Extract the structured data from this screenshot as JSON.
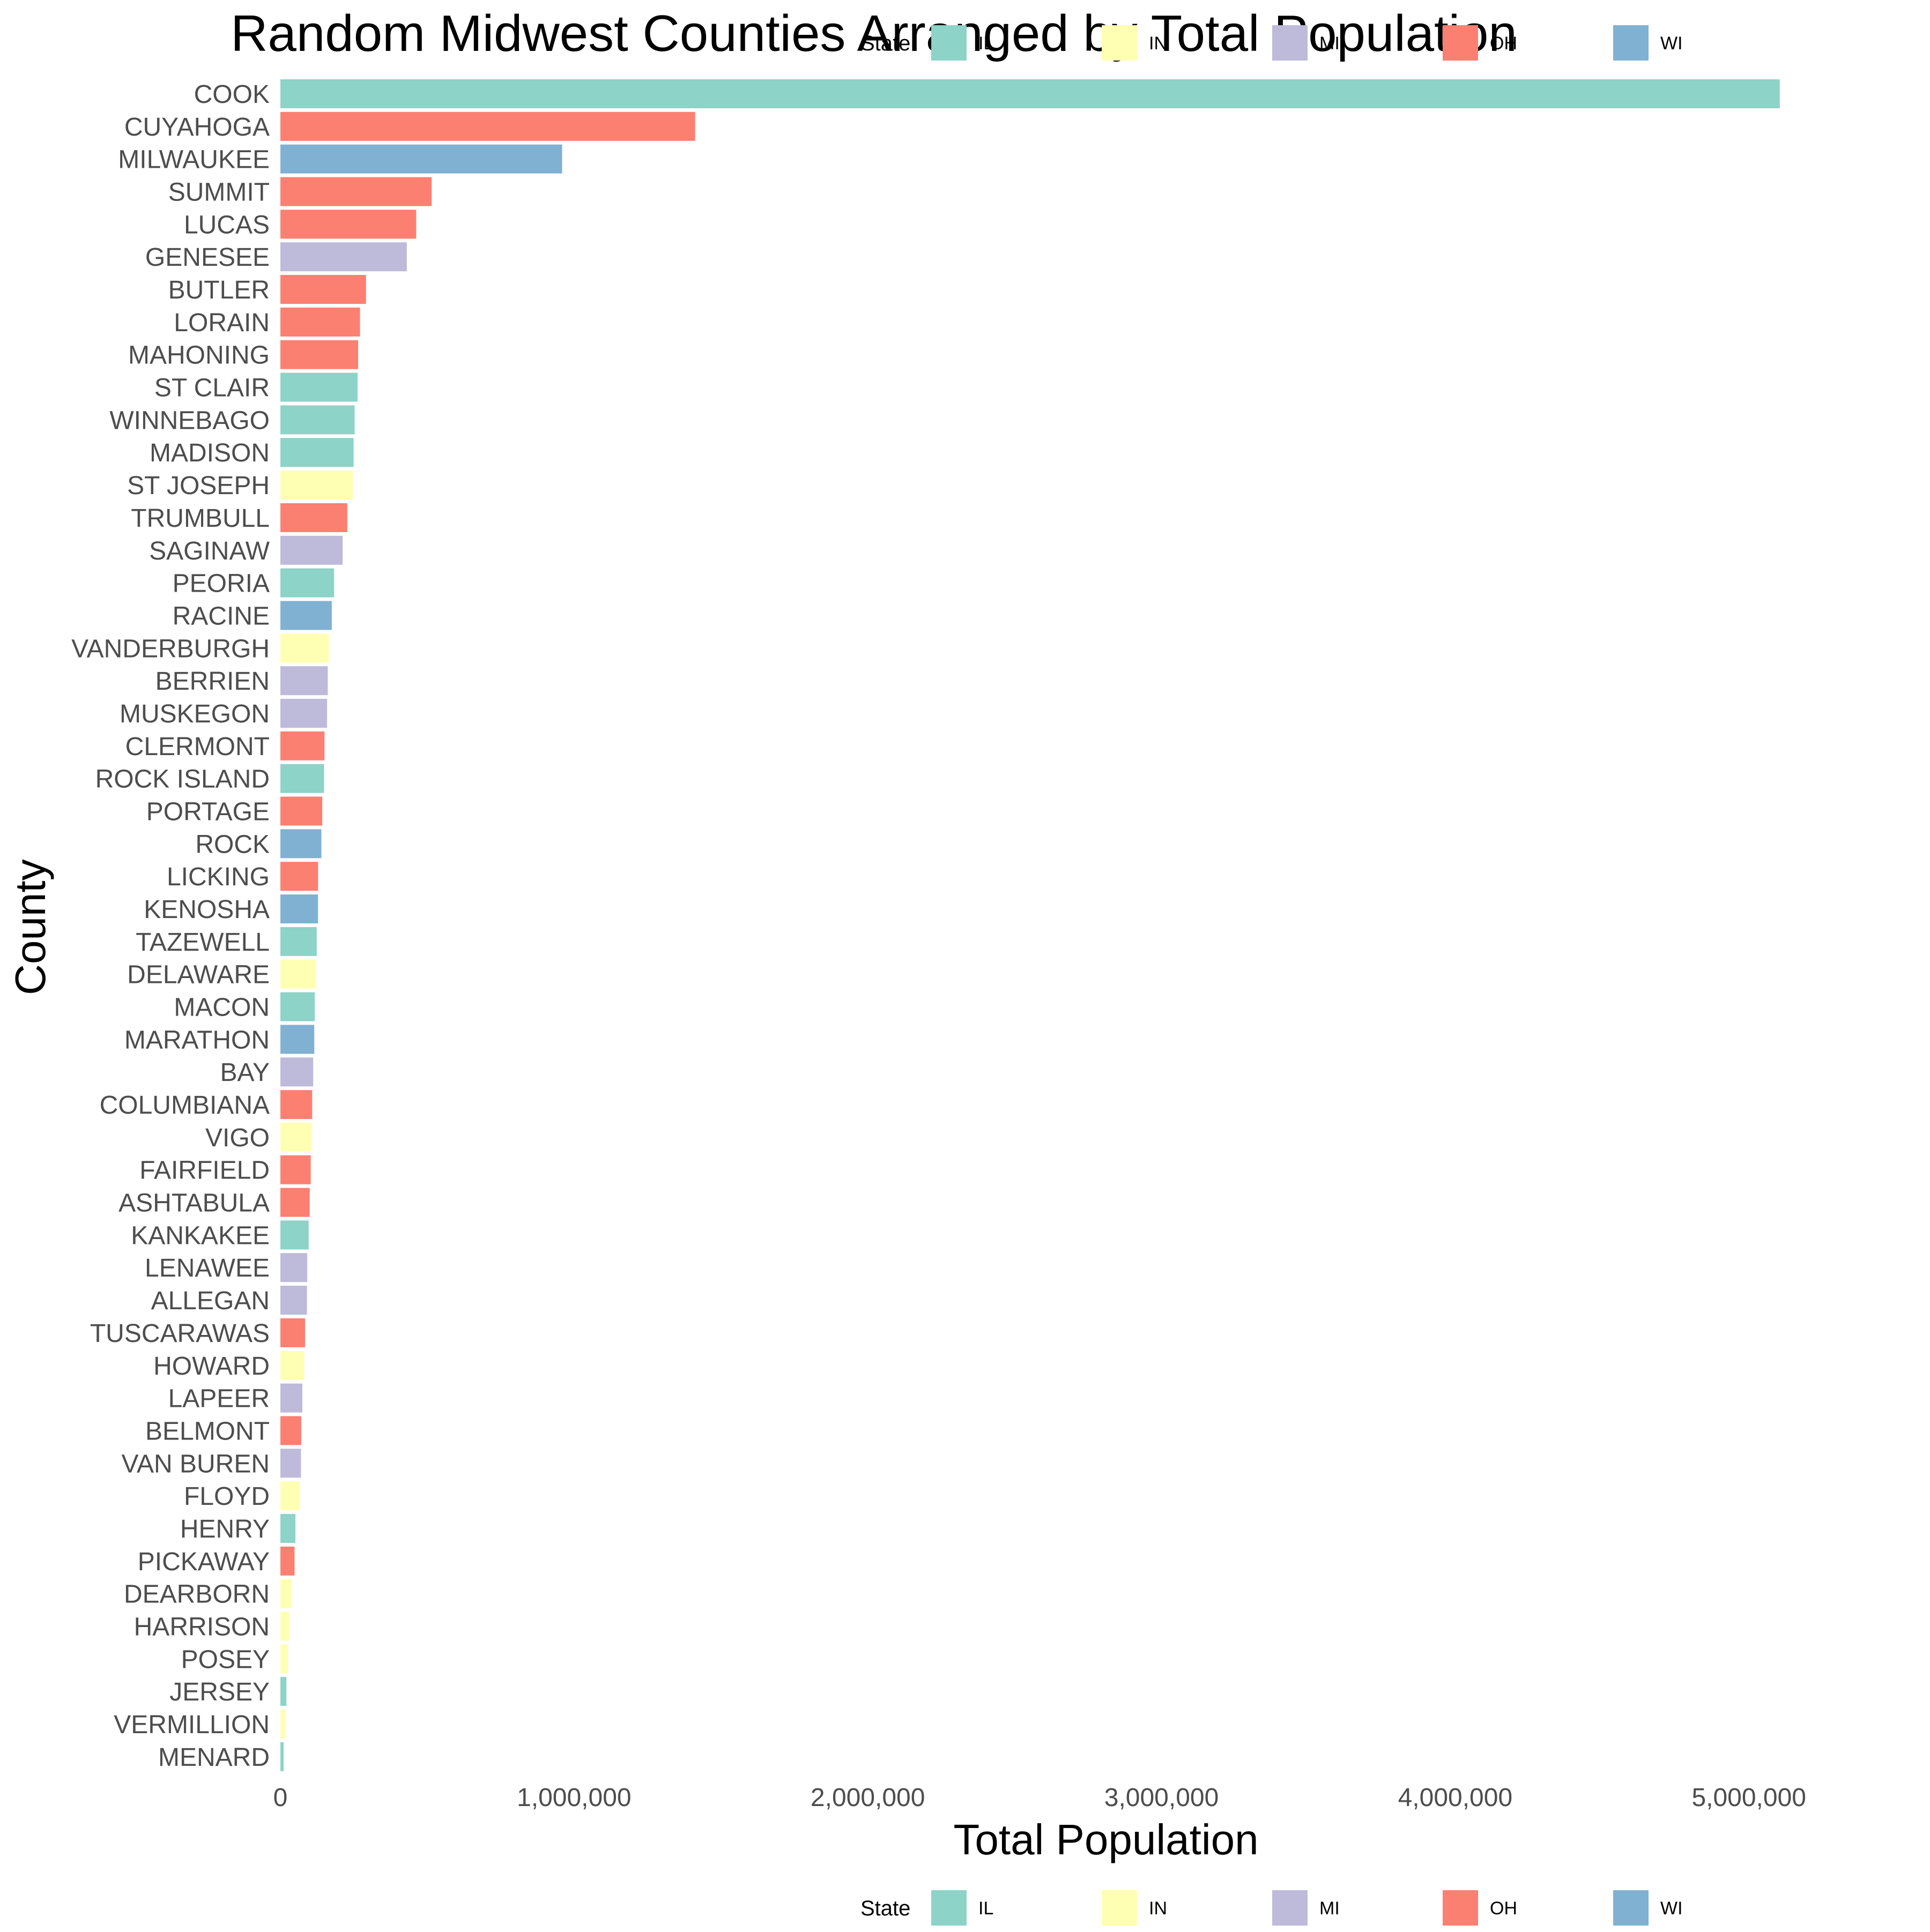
{
  "chart_data": {
    "type": "bar",
    "orientation": "horizontal",
    "title": "Random Midwest Counties Arranged by Total Population",
    "xlabel": "Total Population",
    "ylabel": "County",
    "xlim": [
      0,
      5100000
    ],
    "x_ticks": [
      0,
      1000000,
      2000000,
      3000000,
      4000000,
      5000000
    ],
    "x_tick_labels": [
      "0",
      "1,000,000",
      "2,000,000",
      "3,000,000",
      "4,000,000",
      "5,000,000"
    ],
    "grid": false,
    "legend": {
      "title": "State",
      "placement": "bottom",
      "entries": [
        {
          "label": "IL",
          "color": "#8dd3c7"
        },
        {
          "label": "IN",
          "color": "#ffffb3"
        },
        {
          "label": "MI",
          "color": "#bebada"
        },
        {
          "label": "OH",
          "color": "#fb8072"
        },
        {
          "label": "WI",
          "color": "#80b1d3"
        }
      ]
    },
    "bars": [
      {
        "county": "COOK",
        "state": "IL",
        "value": 5105067
      },
      {
        "county": "CUYAHOGA",
        "state": "OH",
        "value": 1412140
      },
      {
        "county": "MILWAUKEE",
        "state": "WI",
        "value": 959275
      },
      {
        "county": "SUMMIT",
        "state": "OH",
        "value": 514990
      },
      {
        "county": "LUCAS",
        "state": "OH",
        "value": 462361
      },
      {
        "county": "GENESEE",
        "state": "MI",
        "value": 430459
      },
      {
        "county": "BUTLER",
        "state": "OH",
        "value": 291479
      },
      {
        "county": "LORAIN",
        "state": "OH",
        "value": 271126
      },
      {
        "county": "MAHONING",
        "state": "OH",
        "value": 264806
      },
      {
        "county": "ST CLAIR",
        "state": "IL",
        "value": 262852
      },
      {
        "county": "WINNEBAGO",
        "state": "IL",
        "value": 252913
      },
      {
        "county": "MADISON",
        "state": "IL",
        "value": 249238
      },
      {
        "county": "ST JOSEPH",
        "state": "IN",
        "value": 247052
      },
      {
        "county": "TRUMBULL",
        "state": "OH",
        "value": 227813
      },
      {
        "county": "SAGINAW",
        "state": "MI",
        "value": 211946
      },
      {
        "county": "PEORIA",
        "state": "IL",
        "value": 182827
      },
      {
        "county": "RACINE",
        "state": "WI",
        "value": 175034
      },
      {
        "county": "VANDERBURGH",
        "state": "IN",
        "value": 165058
      },
      {
        "county": "BERRIEN",
        "state": "MI",
        "value": 161378
      },
      {
        "county": "MUSKEGON",
        "state": "MI",
        "value": 158983
      },
      {
        "county": "CLERMONT",
        "state": "OH",
        "value": 150187
      },
      {
        "county": "ROCK ISLAND",
        "state": "IL",
        "value": 148723
      },
      {
        "county": "PORTAGE",
        "state": "OH",
        "value": 142585
      },
      {
        "county": "ROCK",
        "state": "WI",
        "value": 139510
      },
      {
        "county": "LICKING",
        "state": "OH",
        "value": 128300
      },
      {
        "county": "KENOSHA",
        "state": "WI",
        "value": 128181
      },
      {
        "county": "TAZEWELL",
        "state": "IL",
        "value": 123692
      },
      {
        "county": "DELAWARE",
        "state": "IN",
        "value": 119659
      },
      {
        "county": "MACON",
        "state": "IL",
        "value": 117206
      },
      {
        "county": "MARATHON",
        "state": "WI",
        "value": 115400
      },
      {
        "county": "BAY",
        "state": "MI",
        "value": 111723
      },
      {
        "county": "COLUMBIANA",
        "state": "OH",
        "value": 108276
      },
      {
        "county": "VIGO",
        "state": "IN",
        "value": 106107
      },
      {
        "county": "FAIRFIELD",
        "state": "OH",
        "value": 103461
      },
      {
        "county": "ASHTABULA",
        "state": "OH",
        "value": 99821
      },
      {
        "county": "KANKAKEE",
        "state": "IL",
        "value": 96255
      },
      {
        "county": "LENAWEE",
        "state": "MI",
        "value": 91476
      },
      {
        "county": "ALLEGAN",
        "state": "MI",
        "value": 90509
      },
      {
        "county": "TUSCARAWAS",
        "state": "OH",
        "value": 84090
      },
      {
        "county": "HOWARD",
        "state": "IN",
        "value": 80827
      },
      {
        "county": "LAPEER",
        "state": "MI",
        "value": 74768
      },
      {
        "county": "BELMONT",
        "state": "OH",
        "value": 71074
      },
      {
        "county": "VAN BUREN",
        "state": "MI",
        "value": 70060
      },
      {
        "county": "FLOYD",
        "state": "IN",
        "value": 64404
      },
      {
        "county": "HENRY",
        "state": "IL",
        "value": 51159
      },
      {
        "county": "PICKAWAY",
        "state": "OH",
        "value": 48255
      },
      {
        "county": "DEARBORN",
        "state": "IN",
        "value": 38835
      },
      {
        "county": "HARRISON",
        "state": "IN",
        "value": 29890
      },
      {
        "county": "POSEY",
        "state": "IN",
        "value": 25968
      },
      {
        "county": "JERSEY",
        "state": "IL",
        "value": 20539
      },
      {
        "county": "VERMILLION",
        "state": "IN",
        "value": 16773
      },
      {
        "county": "MENARD",
        "state": "IL",
        "value": 11164
      }
    ]
  }
}
